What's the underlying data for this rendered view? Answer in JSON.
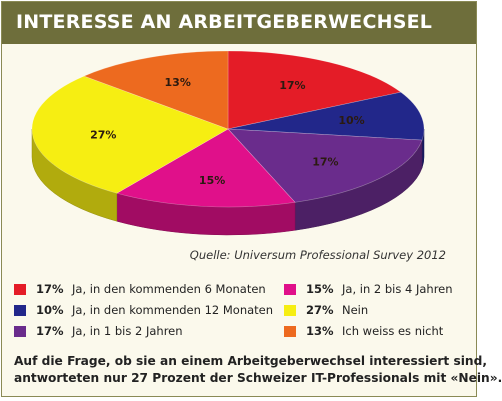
{
  "chart_data": {
    "type": "pie",
    "title": "INTERESSE AN ARBEITGEBERWECHSEL",
    "source": "Quelle: Universum Professional Survey 2012",
    "slices": [
      {
        "label": "Ja, in den kommenden 6 Monaten",
        "value": 17,
        "value_label": "17%",
        "color": "#e41c27"
      },
      {
        "label": "Ja, in den kommenden 12 Monaten",
        "value": 10,
        "value_label": "10%",
        "color": "#22278a"
      },
      {
        "label": "Ja, in 1 bis 2 Jahren",
        "value": 17,
        "value_label": "17%",
        "color": "#6a2c8c"
      },
      {
        "label": "Ja, in 2 bis 4 Jahren",
        "value": 15,
        "value_label": "15%",
        "color": "#e0108a"
      },
      {
        "label": "Nein",
        "value": 27,
        "value_label": "27%",
        "color": "#f6ee12"
      },
      {
        "label": "Ich weiss es nicht",
        "value": 13,
        "value_label": "13%",
        "color": "#ed6a1f"
      }
    ]
  },
  "footnote": {
    "line1": "Auf die Frage, ob sie an einem Arbeitgeberwechsel interessiert sind,",
    "line2": "antworteten nur 27 Prozent der Schweizer IT-Professionals mit «Nein»."
  }
}
